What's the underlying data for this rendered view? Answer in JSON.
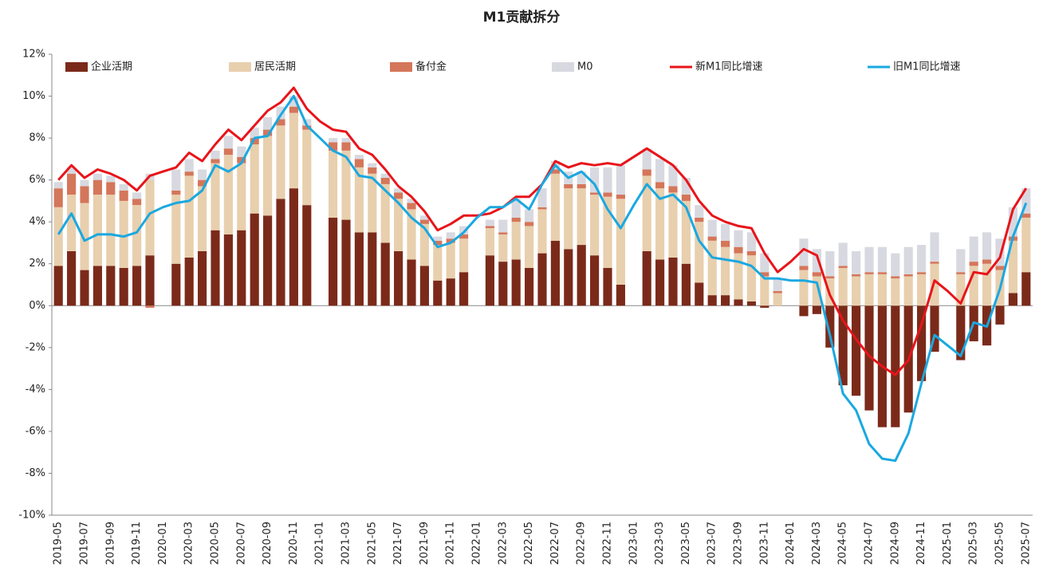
{
  "chart_data": {
    "type": "bar",
    "title": "M1贡献拆分",
    "categories": [
      "2019-05",
      null,
      "2019-07",
      null,
      "2019-09",
      null,
      "2019-11",
      null,
      "2020-01",
      null,
      "2020-03",
      null,
      "2020-05",
      null,
      "2020-07",
      null,
      "2020-09",
      null,
      "2020-11",
      null,
      "2021-01",
      null,
      "2021-03",
      null,
      "2021-05",
      null,
      "2021-07",
      null,
      "2021-09",
      null,
      "2021-11",
      null,
      "2022-01",
      null,
      "2022-03",
      null,
      "2022-05",
      null,
      "2022-07",
      null,
      "2022-09",
      null,
      "2022-11",
      null,
      "2023-01",
      null,
      "2023-03",
      null,
      "2023-05",
      null,
      "2023-07",
      null,
      "2023-09",
      null,
      "2023-11",
      null,
      "2024-01",
      null,
      "2024-03",
      null,
      "2024-05",
      null,
      "2024-07",
      null,
      "2024-09",
      null,
      "2024-11",
      null,
      "2025-01",
      null,
      "2025-03",
      null,
      "2025-05",
      null,
      "2025-07"
    ],
    "series": [
      {
        "name": "企业活期",
        "kind": "bar",
        "color": "#7b2a1a",
        "values": [
          1.9,
          2.6,
          1.7,
          1.9,
          1.9,
          1.8,
          1.9,
          2.4,
          null,
          2.0,
          2.3,
          2.6,
          3.6,
          3.4,
          3.6,
          4.4,
          4.3,
          5.1,
          5.6,
          4.8,
          null,
          4.2,
          4.1,
          3.5,
          3.5,
          3.0,
          2.6,
          2.2,
          1.9,
          1.2,
          1.3,
          1.6,
          null,
          2.4,
          2.1,
          2.2,
          1.8,
          2.5,
          3.1,
          2.7,
          2.9,
          2.4,
          1.8,
          1.0,
          null,
          2.6,
          2.2,
          2.3,
          2.0,
          1.1,
          0.5,
          0.5,
          0.3,
          0.2,
          -0.1,
          0.0,
          null,
          -0.5,
          -0.4,
          -2.0,
          -3.8,
          -4.3,
          -5.0,
          -5.8,
          -5.8,
          -5.1,
          -3.6,
          -2.2,
          null,
          -2.6,
          -1.7,
          -1.9,
          -0.9,
          0.6,
          1.6
        ]
      },
      {
        "name": "居民活期",
        "kind": "bar",
        "color": "#e8cfae",
        "values": [
          2.8,
          2.7,
          3.2,
          3.4,
          3.4,
          3.2,
          2.9,
          3.6,
          null,
          3.3,
          3.9,
          3.1,
          3.2,
          3.8,
          3.2,
          3.3,
          3.8,
          3.5,
          3.6,
          3.6,
          null,
          3.2,
          3.3,
          3.1,
          2.8,
          2.8,
          2.5,
          2.4,
          2.0,
          1.7,
          1.7,
          1.6,
          null,
          1.3,
          1.3,
          1.8,
          2.0,
          2.1,
          3.2,
          2.9,
          2.7,
          2.9,
          3.4,
          4.1,
          null,
          3.6,
          3.4,
          3.1,
          3.0,
          2.9,
          2.6,
          2.3,
          2.2,
          2.2,
          1.4,
          0.6,
          null,
          1.7,
          1.4,
          1.3,
          1.8,
          1.4,
          1.5,
          1.5,
          1.3,
          1.4,
          1.5,
          2.0,
          null,
          1.5,
          1.9,
          2.0,
          1.7,
          2.5,
          2.6
        ]
      },
      {
        "name": "备付金",
        "kind": "bar",
        "color": "#d4765a",
        "values": [
          0.9,
          1.0,
          0.8,
          0.7,
          0.6,
          0.5,
          0.3,
          -0.1,
          null,
          0.2,
          0.2,
          0.3,
          0.2,
          0.3,
          0.3,
          0.3,
          0.3,
          0.3,
          0.3,
          0.2,
          null,
          0.4,
          0.4,
          0.4,
          0.3,
          0.3,
          0.3,
          0.3,
          0.2,
          0.2,
          0.2,
          0.2,
          null,
          0.1,
          0.1,
          0.2,
          0.2,
          0.1,
          0.2,
          0.2,
          0.2,
          0.1,
          0.2,
          0.2,
          null,
          0.3,
          0.3,
          0.3,
          0.3,
          0.2,
          0.2,
          0.3,
          0.3,
          0.2,
          0.2,
          0.1,
          null,
          0.2,
          0.2,
          0.1,
          0.1,
          0.1,
          0.1,
          0.1,
          0.1,
          0.1,
          0.1,
          0.1,
          null,
          0.1,
          0.2,
          0.2,
          0.2,
          0.2,
          0.2
        ]
      },
      {
        "name": "M0",
        "kind": "bar",
        "color": "#d8d9e0",
        "values": [
          0.3,
          0.3,
          0.3,
          0.3,
          0.3,
          0.3,
          0.3,
          0.3,
          null,
          1.0,
          0.6,
          0.5,
          0.4,
          0.6,
          0.5,
          0.5,
          0.6,
          0.6,
          0.5,
          0.3,
          null,
          0.2,
          0.2,
          0.2,
          0.2,
          0.2,
          0.2,
          0.2,
          0.2,
          0.2,
          0.3,
          0.4,
          null,
          0.3,
          0.6,
          0.9,
          0.6,
          0.9,
          0.4,
          0.6,
          0.6,
          1.2,
          1.2,
          1.4,
          null,
          1.0,
          1.1,
          1.0,
          0.8,
          0.6,
          0.8,
          0.8,
          0.8,
          0.9,
          0.9,
          0.6,
          null,
          1.3,
          1.1,
          1.2,
          1.1,
          1.1,
          1.2,
          1.2,
          1.1,
          1.3,
          1.3,
          1.4,
          null,
          1.1,
          1.2,
          1.3,
          1.3,
          1.4,
          1.2
        ]
      },
      {
        "name": "新M1同比增速",
        "kind": "line",
        "color": "#e8141a",
        "values": [
          6.0,
          6.7,
          6.1,
          6.5,
          6.3,
          6.0,
          5.5,
          6.2,
          6.4,
          6.6,
          7.3,
          6.9,
          7.7,
          8.4,
          7.9,
          8.6,
          9.3,
          9.7,
          10.4,
          9.4,
          8.8,
          8.4,
          8.3,
          7.5,
          7.2,
          6.5,
          5.7,
          5.2,
          4.5,
          3.6,
          3.9,
          4.3,
          4.3,
          4.4,
          4.7,
          5.2,
          5.2,
          5.8,
          6.9,
          6.6,
          6.8,
          6.7,
          6.8,
          6.7,
          7.1,
          7.5,
          7.1,
          6.7,
          6.0,
          5.0,
          4.3,
          4.0,
          3.8,
          3.7,
          2.5,
          1.6,
          2.1,
          2.7,
          2.4,
          0.5,
          -0.7,
          -1.6,
          -2.4,
          -2.9,
          -3.3,
          -2.6,
          -0.9,
          1.2,
          0.7,
          0.1,
          1.6,
          1.5,
          2.3,
          4.6,
          5.6
        ]
      },
      {
        "name": "旧M1同比增速",
        "kind": "line",
        "color": "#1aa8e0",
        "values": [
          3.4,
          4.4,
          3.1,
          3.4,
          3.4,
          3.3,
          3.5,
          4.4,
          4.7,
          4.9,
          5.0,
          5.5,
          6.7,
          6.4,
          6.8,
          8.0,
          8.1,
          9.1,
          10.0,
          8.6,
          8.0,
          7.4,
          7.1,
          6.2,
          6.1,
          5.5,
          4.9,
          4.2,
          3.7,
          2.8,
          3.0,
          3.5,
          4.2,
          4.7,
          4.7,
          5.1,
          4.6,
          5.8,
          6.7,
          6.1,
          6.4,
          5.8,
          4.6,
          3.7,
          4.8,
          5.8,
          5.1,
          5.3,
          4.7,
          3.1,
          2.3,
          2.2,
          2.1,
          1.9,
          1.3,
          1.3,
          1.2,
          1.2,
          1.1,
          -1.4,
          -4.2,
          -5.0,
          -6.6,
          -7.3,
          -7.4,
          -6.1,
          -3.7,
          -1.4,
          -1.9,
          -2.4,
          -0.8,
          -1.0,
          0.8,
          3.3,
          4.9
        ]
      }
    ],
    "ylim": [
      -10,
      12
    ],
    "yticks": [
      {
        "value": -10,
        "label": "-10%"
      },
      {
        "value": -8,
        "label": "-8%"
      },
      {
        "value": -6,
        "label": "-6%"
      },
      {
        "value": -4,
        "label": "-4%"
      },
      {
        "value": -2,
        "label": "-2%"
      },
      {
        "value": 0,
        "label": "0%"
      },
      {
        "value": 2,
        "label": "2%"
      },
      {
        "value": 4,
        "label": "4%"
      },
      {
        "value": 6,
        "label": "6%"
      },
      {
        "value": 8,
        "label": "8%"
      },
      {
        "value": 10,
        "label": "10%"
      },
      {
        "value": 12,
        "label": "12%"
      }
    ],
    "grid": false,
    "legend": "top"
  }
}
